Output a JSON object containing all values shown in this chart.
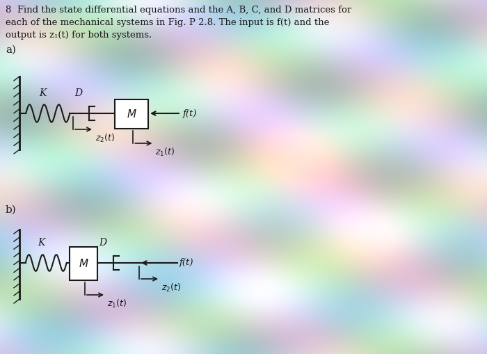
{
  "fig_width": 7.0,
  "fig_height": 5.09,
  "dpi": 100,
  "bg_base": "#c8dcd8",
  "line_color": "#1a1a1a",
  "text_color": "#1a1a1a",
  "title_lines": [
    "8  Find the state differential equations and the A, B, C, and D matrices for",
    "each of the mechanical systems in Fig. P 2.8. The input is f(t) and the",
    "output is z₁(t) for both systems."
  ],
  "label_a": "a)",
  "label_b": "b)"
}
